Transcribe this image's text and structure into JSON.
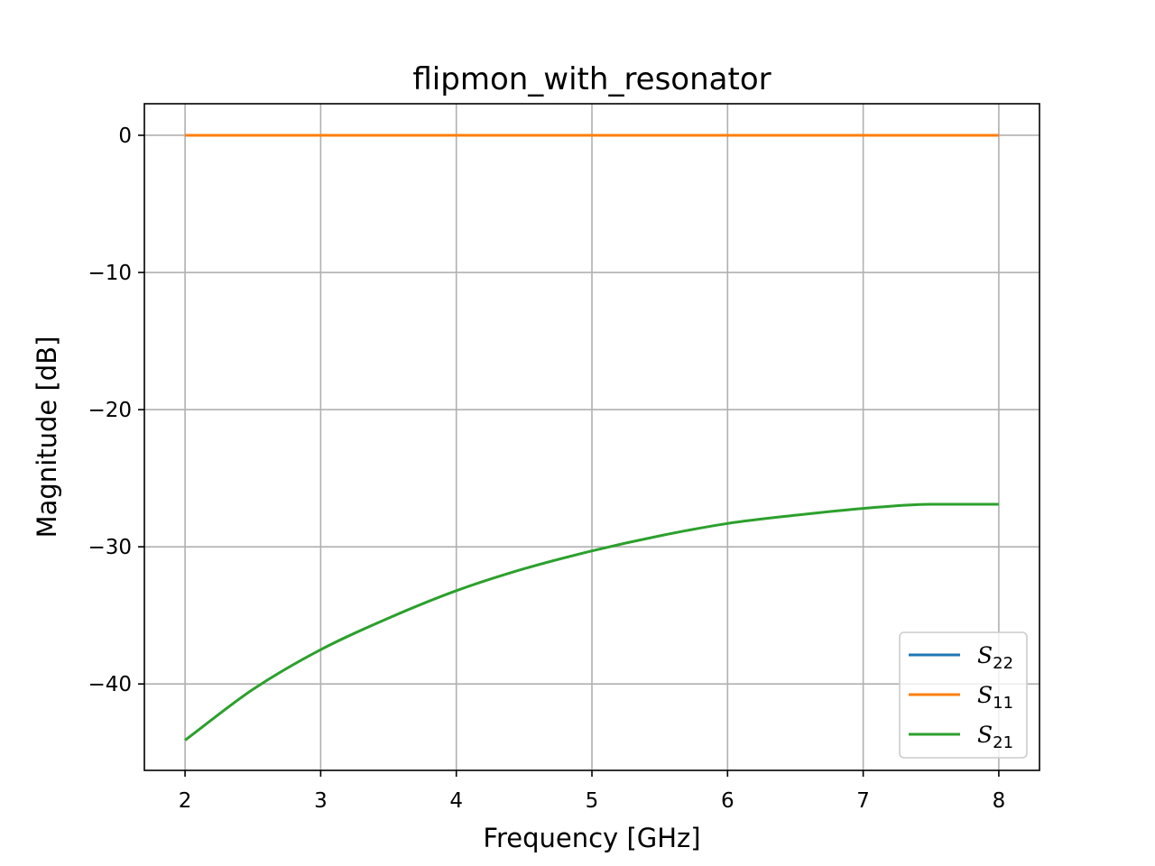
{
  "chart_data": {
    "type": "line",
    "title": "flipmon_with_resonator",
    "xlabel": "Frequency [GHz]",
    "ylabel": "Magnitude [dB]",
    "xlim": [
      1.7,
      8.3
    ],
    "ylim": [
      -46.3,
      2.3
    ],
    "xticks": [
      2,
      3,
      4,
      5,
      6,
      7,
      8
    ],
    "yticks": [
      0,
      -10,
      -20,
      -30,
      -40
    ],
    "ytick_labels": [
      "0",
      "−10",
      "−20",
      "−30",
      "−40"
    ],
    "grid": true,
    "legend_position": "lower right",
    "x": [
      2.0,
      2.5,
      3.0,
      3.5,
      4.0,
      4.5,
      5.0,
      5.5,
      6.0,
      6.5,
      7.0,
      7.5,
      8.0
    ],
    "series": [
      {
        "name": "S",
        "subscript": "22",
        "color": "#1f77b4",
        "values": [
          0,
          0,
          0,
          0,
          0,
          0,
          0,
          0,
          0,
          0,
          0,
          0,
          0
        ]
      },
      {
        "name": "S",
        "subscript": "11",
        "color": "#ff7f0e",
        "values": [
          0,
          0,
          0,
          0,
          0,
          0,
          0,
          0,
          0,
          0,
          0,
          0,
          0
        ]
      },
      {
        "name": "S",
        "subscript": "21",
        "color": "#2ca02c",
        "values": [
          -44.1,
          -40.4,
          -37.5,
          -35.2,
          -33.2,
          -31.6,
          -30.3,
          -29.2,
          -28.3,
          -27.7,
          -27.2,
          -26.9,
          -26.9
        ]
      }
    ]
  }
}
